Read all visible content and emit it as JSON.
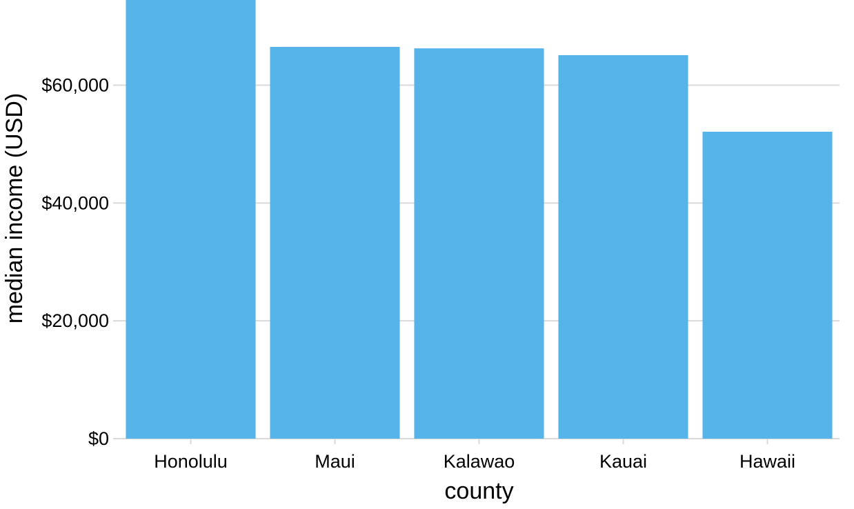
{
  "chart_data": {
    "type": "bar",
    "categories": [
      "Honolulu",
      "Maui",
      "Kalawao",
      "Kauai",
      "Hawaii"
    ],
    "values": [
      74460,
      66500,
      66250,
      65100,
      52100
    ],
    "xlabel": "county",
    "ylabel": "median income (USD)",
    "ylim": [
      0,
      74460
    ],
    "yticks": [
      0,
      20000,
      40000,
      60000
    ],
    "ytick_labels": [
      "$0",
      "$20,000",
      "$40,000",
      "$60,000"
    ],
    "grid": "horizontal",
    "bar_color": "#56B4E9",
    "grid_color": "#d9d9d9"
  }
}
